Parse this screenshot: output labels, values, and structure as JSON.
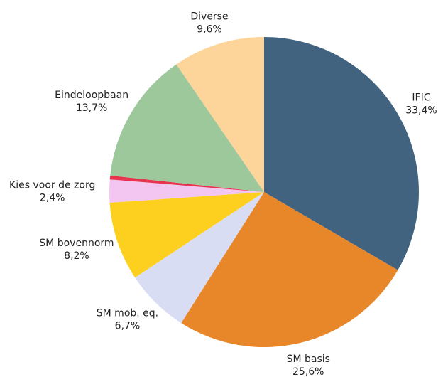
{
  "chart_data": {
    "type": "pie",
    "categories": [
      "IFIC",
      "SM basis",
      "SM mob. eq.",
      "SM bovennorm",
      "Kies voor de zorg",
      null,
      "Eindeloopbaan",
      "Diverse"
    ],
    "values": [
      33.4,
      25.6,
      6.7,
      8.2,
      2.4,
      0.4,
      13.7,
      9.6
    ],
    "value_labels": [
      "33,4%",
      "25,6%",
      "6,7%",
      "8,2%",
      "2,4%",
      null,
      "13,7%",
      "9,6%"
    ],
    "colors": [
      "#41637f",
      "#e8872a",
      "#d9ddf4",
      "#fdd020",
      "#f2c6f0",
      "#e8334f",
      "#9cc89b",
      "#fdd59b"
    ]
  }
}
